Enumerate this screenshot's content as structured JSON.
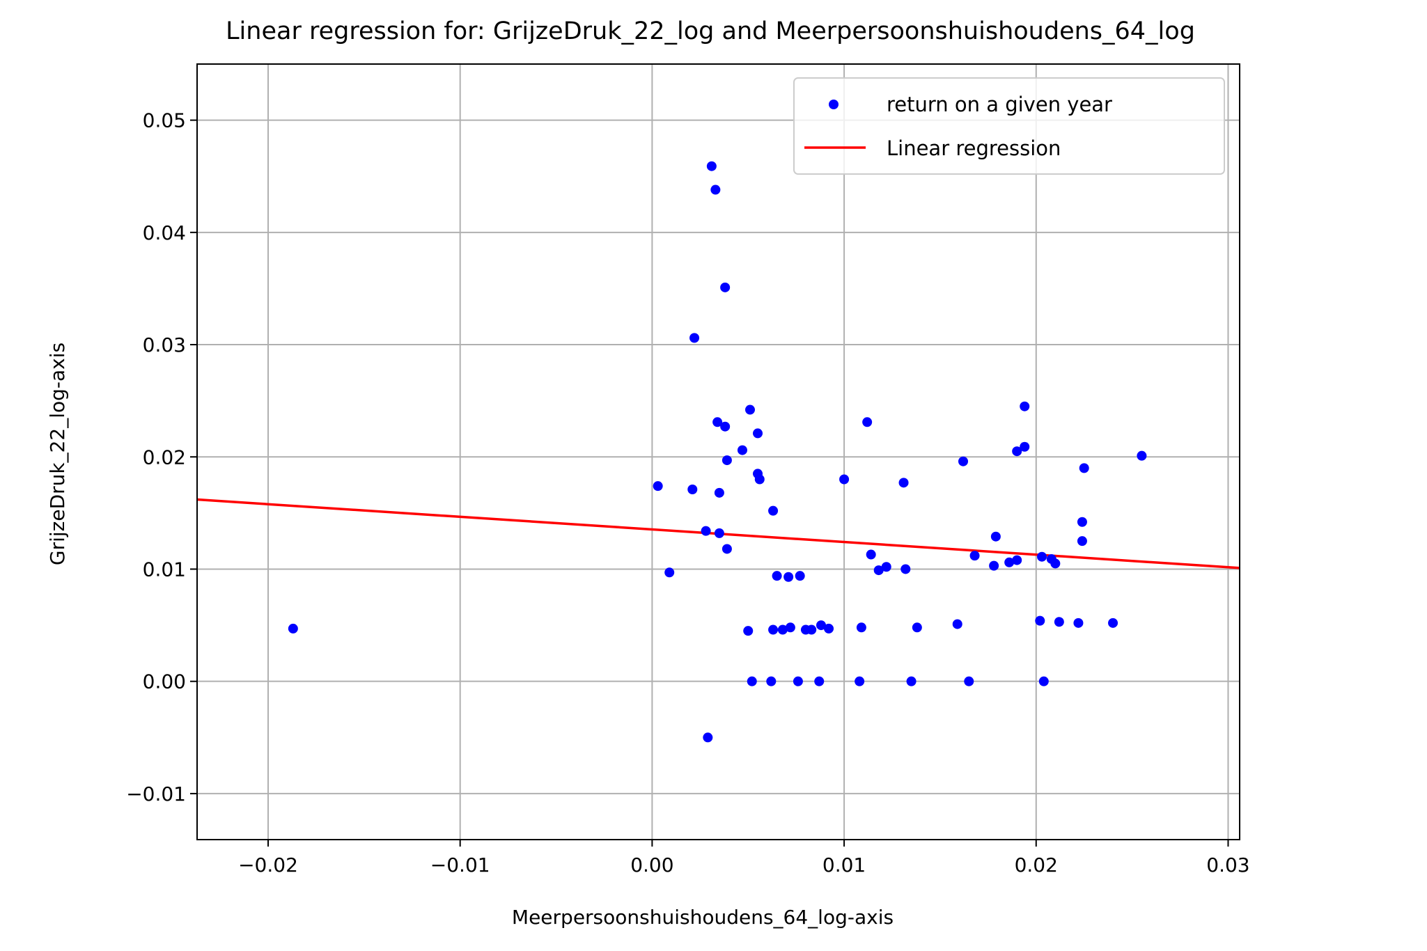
{
  "chart_data": {
    "type": "scatter",
    "title": "Linear regression for: GrijzeDruk_22_log and Meerpersoonshuishoudens_64_log",
    "xlabel": "Meerpersoonshuishoudens_64_log-axis",
    "ylabel": "GrijzeDruk_22_log-axis",
    "xlim": [
      -0.0237,
      0.0306
    ],
    "ylim": [
      -0.0141,
      0.055
    ],
    "xticks": [
      -0.02,
      -0.01,
      0.0,
      0.01,
      0.02,
      0.03
    ],
    "xtick_labels": [
      "−0.02",
      "−0.01",
      "0.00",
      "0.01",
      "0.02",
      "0.03"
    ],
    "yticks": [
      -0.01,
      0.0,
      0.01,
      0.02,
      0.03,
      0.04,
      0.05
    ],
    "ytick_labels": [
      "−0.01",
      "0.00",
      "0.01",
      "0.02",
      "0.03",
      "0.04",
      "0.05"
    ],
    "grid": true,
    "legend_position": "upper right",
    "colors": {
      "points": "#0000ff",
      "regression": "#ff0000",
      "grid": "#b0b0b0"
    },
    "series": [
      {
        "name": "return on a given year",
        "kind": "scatter",
        "points": [
          [
            -0.0187,
            0.0047
          ],
          [
            0.0003,
            0.0174
          ],
          [
            0.0009,
            0.0097
          ],
          [
            0.0021,
            0.0171
          ],
          [
            0.0022,
            0.0306
          ],
          [
            0.0028,
            0.0134
          ],
          [
            0.0029,
            -0.005
          ],
          [
            0.0031,
            0.0459
          ],
          [
            0.0033,
            0.0438
          ],
          [
            0.0034,
            0.0231
          ],
          [
            0.0035,
            0.0168
          ],
          [
            0.0035,
            0.0132
          ],
          [
            0.0038,
            0.0227
          ],
          [
            0.0038,
            0.0351
          ],
          [
            0.0039,
            0.0197
          ],
          [
            0.0039,
            0.0118
          ],
          [
            0.0047,
            0.0206
          ],
          [
            0.005,
            0.0045
          ],
          [
            0.0051,
            0.0242
          ],
          [
            0.0052,
            0.0
          ],
          [
            0.0055,
            0.0221
          ],
          [
            0.0055,
            0.0185
          ],
          [
            0.0056,
            0.018
          ],
          [
            0.0062,
            0.0
          ],
          [
            0.0063,
            0.0152
          ],
          [
            0.0063,
            0.0046
          ],
          [
            0.0065,
            0.0094
          ],
          [
            0.0068,
            0.0046
          ],
          [
            0.0071,
            0.0093
          ],
          [
            0.0072,
            0.0048
          ],
          [
            0.0076,
            0.0
          ],
          [
            0.0077,
            0.0094
          ],
          [
            0.008,
            0.0046
          ],
          [
            0.0083,
            0.0046
          ],
          [
            0.0087,
            0.0
          ],
          [
            0.0088,
            0.005
          ],
          [
            0.0092,
            0.0047
          ],
          [
            0.01,
            0.018
          ],
          [
            0.0108,
            0.0
          ],
          [
            0.0109,
            0.0048
          ],
          [
            0.0112,
            0.0231
          ],
          [
            0.0114,
            0.0113
          ],
          [
            0.0118,
            0.0099
          ],
          [
            0.0122,
            0.0102
          ],
          [
            0.0131,
            0.0177
          ],
          [
            0.0132,
            0.01
          ],
          [
            0.0135,
            0.0
          ],
          [
            0.0138,
            0.0048
          ],
          [
            0.0159,
            0.0051
          ],
          [
            0.0162,
            0.0196
          ],
          [
            0.0165,
            0.0
          ],
          [
            0.0168,
            0.0112
          ],
          [
            0.0178,
            0.0103
          ],
          [
            0.0179,
            0.0129
          ],
          [
            0.0186,
            0.0106
          ],
          [
            0.019,
            0.0108
          ],
          [
            0.019,
            0.0205
          ],
          [
            0.0194,
            0.0245
          ],
          [
            0.0194,
            0.0209
          ],
          [
            0.0202,
            0.0054
          ],
          [
            0.0203,
            0.0111
          ],
          [
            0.0204,
            0.0
          ],
          [
            0.0208,
            0.0109
          ],
          [
            0.021,
            0.0105
          ],
          [
            0.0212,
            0.0053
          ],
          [
            0.0222,
            0.0052
          ],
          [
            0.0224,
            0.0142
          ],
          [
            0.0224,
            0.0125
          ],
          [
            0.0225,
            0.019
          ],
          [
            0.024,
            0.0052
          ],
          [
            0.0255,
            0.0201
          ]
        ]
      },
      {
        "name": "Linear regression",
        "kind": "line",
        "x": [
          -0.0237,
          0.0306
        ],
        "y": [
          0.0162,
          0.0101
        ]
      }
    ]
  }
}
